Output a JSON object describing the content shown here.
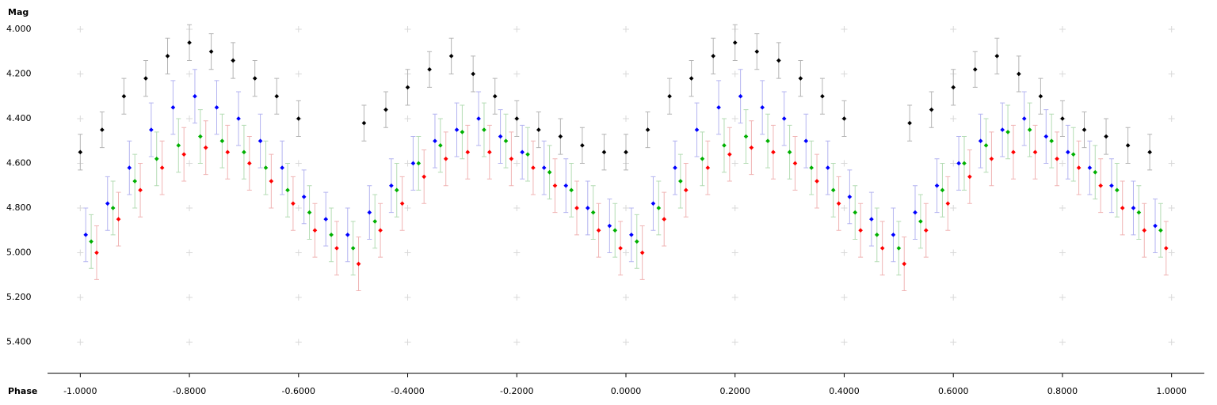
{
  "chart_data": {
    "type": "scatter",
    "x_label": "Phase",
    "y_label": "Mag",
    "xlim": [
      -1.06,
      1.06
    ],
    "ylim": [
      3.94,
      5.54
    ],
    "y_inverted": true,
    "grid": "crosses",
    "xticks": [
      {
        "value": -1,
        "label": "-1.0000"
      },
      {
        "value": -0.8,
        "label": "-0.8000"
      },
      {
        "value": -0.6,
        "label": "-0.6000"
      },
      {
        "value": -0.4,
        "label": "-0.4000"
      },
      {
        "value": -0.2,
        "label": "-0.2000"
      },
      {
        "value": 0,
        "label": "0.0000"
      },
      {
        "value": 0.2,
        "label": "0.2000"
      },
      {
        "value": 0.4,
        "label": "0.4000"
      },
      {
        "value": 0.6,
        "label": "0.6000"
      },
      {
        "value": 0.8,
        "label": "0.8000"
      },
      {
        "value": 1,
        "label": "1.0000"
      }
    ],
    "yticks": [
      {
        "value": 4,
        "label": "4.000"
      },
      {
        "value": 4.2,
        "label": "4.200"
      },
      {
        "value": 4.4,
        "label": "4.400"
      },
      {
        "value": 4.6,
        "label": "4.600"
      },
      {
        "value": 4.8,
        "label": "4.800"
      },
      {
        "value": 5,
        "label": "5.000"
      },
      {
        "value": 5.2,
        "label": "5.200"
      },
      {
        "value": 5.4,
        "label": "5.400"
      }
    ],
    "series": [
      {
        "color": "#000000",
        "error_color": "#b4b4b4",
        "error": 0.08,
        "x": [
          -1.0,
          -0.96,
          -0.92,
          -0.88,
          -0.84,
          -0.8,
          -0.76,
          -0.72,
          -0.68,
          -0.64,
          -0.6,
          -0.48,
          -0.44,
          -0.4,
          -0.36,
          -0.32,
          -0.28,
          -0.24,
          -0.2,
          -0.16,
          -0.12,
          -0.08,
          -0.04,
          0.0,
          0.04,
          0.08,
          0.12,
          0.16,
          0.2,
          0.24,
          0.28,
          0.32,
          0.36,
          0.4,
          0.52,
          0.56,
          0.6,
          0.64,
          0.68,
          0.72,
          0.76,
          0.8,
          0.84,
          0.88,
          0.92,
          0.96
        ],
        "values": [
          4.55,
          4.45,
          4.3,
          4.22,
          4.12,
          4.06,
          4.1,
          4.14,
          4.22,
          4.3,
          4.4,
          4.42,
          4.36,
          4.26,
          4.18,
          4.12,
          4.2,
          4.3,
          4.4,
          4.45,
          4.48,
          4.52,
          4.55,
          4.55,
          4.45,
          4.3,
          4.22,
          4.12,
          4.06,
          4.1,
          4.14,
          4.22,
          4.3,
          4.4,
          4.42,
          4.36,
          4.26,
          4.18,
          4.12,
          4.2,
          4.3,
          4.4,
          4.45,
          4.48,
          4.52,
          4.55
        ]
      },
      {
        "color": "#0000ff",
        "error_color": "#b4b4f0",
        "error": 0.12,
        "x": [
          -0.99,
          -0.95,
          -0.91,
          -0.87,
          -0.83,
          -0.79,
          -0.75,
          -0.71,
          -0.67,
          -0.63,
          -0.59,
          -0.55,
          -0.51,
          -0.47,
          -0.43,
          -0.39,
          -0.35,
          -0.31,
          -0.27,
          -0.23,
          -0.19,
          -0.15,
          -0.11,
          -0.07,
          -0.03,
          0.01,
          0.05,
          0.09,
          0.13,
          0.17,
          0.21,
          0.25,
          0.29,
          0.33,
          0.37,
          0.41,
          0.45,
          0.49,
          0.53,
          0.57,
          0.61,
          0.65,
          0.69,
          0.73,
          0.77,
          0.81,
          0.85,
          0.89,
          0.93,
          0.97
        ],
        "values": [
          4.92,
          4.78,
          4.62,
          4.45,
          4.35,
          4.3,
          4.35,
          4.4,
          4.5,
          4.62,
          4.75,
          4.85,
          4.92,
          4.82,
          4.7,
          4.6,
          4.5,
          4.45,
          4.4,
          4.48,
          4.55,
          4.62,
          4.7,
          4.8,
          4.88,
          4.92,
          4.78,
          4.62,
          4.45,
          4.35,
          4.3,
          4.35,
          4.4,
          4.5,
          4.62,
          4.75,
          4.85,
          4.92,
          4.82,
          4.7,
          4.6,
          4.5,
          4.45,
          4.4,
          4.48,
          4.55,
          4.62,
          4.7,
          4.8,
          4.88
        ]
      },
      {
        "color": "#00b000",
        "error_color": "#b4dcb4",
        "error": 0.12,
        "x": [
          -0.98,
          -0.94,
          -0.9,
          -0.86,
          -0.82,
          -0.78,
          -0.74,
          -0.7,
          -0.66,
          -0.62,
          -0.58,
          -0.54,
          -0.5,
          -0.46,
          -0.42,
          -0.38,
          -0.34,
          -0.3,
          -0.26,
          -0.22,
          -0.18,
          -0.14,
          -0.1,
          -0.06,
          -0.02,
          0.02,
          0.06,
          0.1,
          0.14,
          0.18,
          0.22,
          0.26,
          0.3,
          0.34,
          0.38,
          0.42,
          0.46,
          0.5,
          0.54,
          0.58,
          0.62,
          0.66,
          0.7,
          0.74,
          0.78,
          0.82,
          0.86,
          0.9,
          0.94,
          0.98
        ],
        "values": [
          4.95,
          4.8,
          4.68,
          4.58,
          4.52,
          4.48,
          4.5,
          4.55,
          4.62,
          4.72,
          4.82,
          4.92,
          4.98,
          4.86,
          4.72,
          4.6,
          4.52,
          4.46,
          4.45,
          4.5,
          4.56,
          4.64,
          4.72,
          4.82,
          4.9,
          4.95,
          4.8,
          4.68,
          4.58,
          4.52,
          4.48,
          4.5,
          4.55,
          4.62,
          4.72,
          4.82,
          4.92,
          4.98,
          4.86,
          4.72,
          4.6,
          4.52,
          4.46,
          4.45,
          4.5,
          4.56,
          4.64,
          4.72,
          4.82,
          4.9
        ]
      },
      {
        "color": "#ff0000",
        "error_color": "#f0b4b4",
        "error": 0.12,
        "x": [
          -0.97,
          -0.93,
          -0.89,
          -0.85,
          -0.81,
          -0.77,
          -0.73,
          -0.69,
          -0.65,
          -0.61,
          -0.57,
          -0.53,
          -0.49,
          -0.45,
          -0.41,
          -0.37,
          -0.33,
          -0.29,
          -0.25,
          -0.21,
          -0.17,
          -0.13,
          -0.09,
          -0.05,
          -0.01,
          0.03,
          0.07,
          0.11,
          0.15,
          0.19,
          0.23,
          0.27,
          0.31,
          0.35,
          0.39,
          0.43,
          0.47,
          0.51,
          0.55,
          0.59,
          0.63,
          0.67,
          0.71,
          0.75,
          0.79,
          0.83,
          0.87,
          0.91,
          0.95,
          0.99
        ],
        "values": [
          5.0,
          4.85,
          4.72,
          4.62,
          4.56,
          4.53,
          4.55,
          4.6,
          4.68,
          4.78,
          4.9,
          4.98,
          5.05,
          4.9,
          4.78,
          4.66,
          4.58,
          4.55,
          4.55,
          4.58,
          4.62,
          4.7,
          4.8,
          4.9,
          4.98,
          5.0,
          4.85,
          4.72,
          4.62,
          4.56,
          4.53,
          4.55,
          4.6,
          4.68,
          4.78,
          4.9,
          4.98,
          5.05,
          4.9,
          4.78,
          4.66,
          4.58,
          4.55,
          4.55,
          4.58,
          4.62,
          4.7,
          4.8,
          4.9,
          4.98
        ]
      }
    ]
  }
}
